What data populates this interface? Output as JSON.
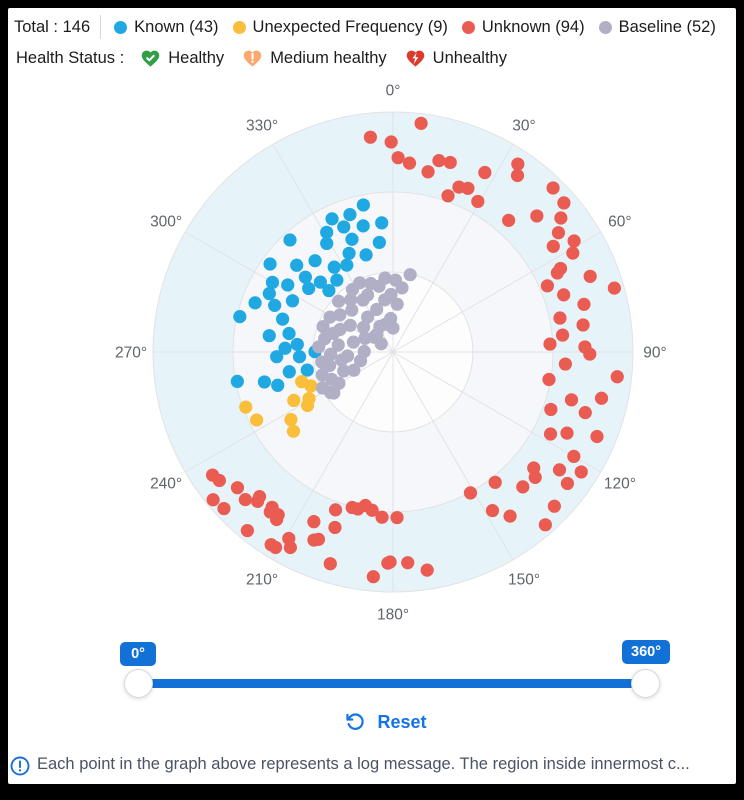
{
  "legend": {
    "total_label": "Total : 146",
    "items": [
      {
        "label": "Known (43)",
        "color": "#1FA8E1"
      },
      {
        "label": "Unexpected Frequency (9)",
        "color": "#F9BE3A"
      },
      {
        "label": "Unknown (94)",
        "color": "#EA5B52"
      },
      {
        "label": "Baseline (52)",
        "color": "#B1AFC5"
      }
    ]
  },
  "health_status": {
    "label": "Health Status :",
    "items": [
      {
        "label": "Healthy",
        "icon": "heart-check-icon",
        "color": "#2F9E44"
      },
      {
        "label": "Medium healthy",
        "icon": "heart-exclamation-icon",
        "color": "#F9A870"
      },
      {
        "label": "Unhealthy",
        "icon": "heart-bolt-icon",
        "color": "#DD3A2E"
      }
    ]
  },
  "chart_data": {
    "type": "scatter",
    "subtype": "polar-scatter",
    "angle_ticks": [
      "0°",
      "30°",
      "60°",
      "90°",
      "120°",
      "150°",
      "180°",
      "210°",
      "240°",
      "270°",
      "300°",
      "330°"
    ],
    "angle_range": [
      0,
      360
    ],
    "grid_color": "#E2E2E5",
    "tick_color": "#5F646B",
    "rings": [
      {
        "frac": 1.0,
        "fill": "#E6F4F9"
      },
      {
        "frac": 0.6667,
        "fill": "#F6F7FA"
      },
      {
        "frac": 0.3333,
        "fill": "#FDFDFE"
      }
    ],
    "series": [
      {
        "name": "Unknown",
        "color": "#EA5B52",
        "points": [
          [
            354,
            0.9
          ],
          [
            359.5,
            0.875
          ],
          [
            1.5,
            0.81
          ],
          [
            5,
            0.79
          ],
          [
            7,
            0.96
          ],
          [
            11,
            0.765
          ],
          [
            13.5,
            0.82
          ],
          [
            16.8,
            0.825
          ],
          [
            19.4,
            0.69
          ],
          [
            21.8,
            0.74
          ],
          [
            24.6,
            0.75
          ],
          [
            27.1,
            0.84
          ],
          [
            29.4,
            0.72
          ],
          [
            33.6,
            0.94
          ],
          [
            35.2,
            0.9
          ],
          [
            41.3,
            0.73
          ],
          [
            44.3,
            0.955
          ],
          [
            46.6,
            0.825
          ],
          [
            48.9,
            0.945
          ],
          [
            51.4,
            0.895
          ],
          [
            54.2,
            0.85
          ],
          [
            56.6,
            0.8
          ],
          [
            58.5,
            0.885
          ],
          [
            61.2,
            0.855
          ],
          [
            63.5,
            0.78
          ],
          [
            64.3,
            0.76
          ],
          [
            66.8,
            0.7
          ],
          [
            69,
            0.88
          ],
          [
            71.5,
            0.75
          ],
          [
            73.9,
            0.96
          ],
          [
            76,
            0.82
          ],
          [
            78.5,
            0.71
          ],
          [
            81.9,
            0.8
          ],
          [
            84.3,
            0.71
          ],
          [
            87.1,
            0.655
          ],
          [
            88.5,
            0.8
          ],
          [
            90.6,
            0.82
          ],
          [
            94,
            0.72
          ],
          [
            96.3,
            0.94
          ],
          [
            100,
            0.66
          ],
          [
            102.5,
            0.89
          ],
          [
            105,
            0.77
          ],
          [
            107.5,
            0.84
          ],
          [
            110,
            0.7
          ],
          [
            112.5,
            0.92
          ],
          [
            115,
            0.8
          ],
          [
            117.5,
            0.74
          ],
          [
            120,
            0.87
          ],
          [
            122.5,
            0.93
          ],
          [
            125.3,
            0.85
          ],
          [
            127,
            0.91
          ],
          [
            129.5,
            0.76
          ],
          [
            131.4,
            0.79
          ],
          [
            133.7,
            0.93
          ],
          [
            136.1,
            0.78
          ],
          [
            138.6,
            0.96
          ],
          [
            141.9,
            0.69
          ],
          [
            144.5,
            0.84
          ],
          [
            147.9,
            0.78
          ],
          [
            151.2,
            0.67
          ],
          [
            171.1,
            0.92
          ],
          [
            176,
            0.88
          ],
          [
            178.6,
            0.69
          ],
          [
            180.8,
            0.875
          ],
          [
            181.4,
            0.88
          ],
          [
            183.8,
            0.69
          ],
          [
            185,
            0.94
          ],
          [
            187.5,
            0.665
          ],
          [
            190.2,
            0.65
          ],
          [
            192.6,
            0.67
          ],
          [
            194.7,
            0.67
          ],
          [
            196.5,
            0.92
          ],
          [
            198.3,
            0.77
          ],
          [
            200,
            0.7
          ],
          [
            201.7,
            0.84
          ],
          [
            202.8,
            0.85
          ],
          [
            205,
            0.78
          ],
          [
            207.7,
            0.92
          ],
          [
            209.2,
            0.89
          ],
          [
            211,
            0.95
          ],
          [
            212.3,
            0.95
          ],
          [
            214.8,
            0.85
          ],
          [
            215.2,
            0.83
          ],
          [
            217.5,
            0.84
          ],
          [
            217.9,
            0.82
          ],
          [
            219.2,
            0.96
          ],
          [
            222.2,
            0.84
          ],
          [
            222.7,
            0.82
          ],
          [
            225,
            0.87
          ],
          [
            227.2,
            0.96
          ],
          [
            228.9,
            0.86
          ],
          [
            230.6,
            0.97
          ],
          [
            233.5,
            0.9
          ],
          [
            235.7,
            0.91
          ]
        ]
      },
      {
        "name": "Known",
        "color": "#1FA8E1",
        "points": [
          [
            348.6,
            0.625
          ],
          [
            346.7,
            0.54
          ],
          [
            344.5,
            0.42
          ],
          [
            342.6,
            0.6
          ],
          [
            340,
            0.5
          ],
          [
            338.5,
            0.56
          ],
          [
            336,
            0.45
          ],
          [
            335.4,
            0.61
          ],
          [
            332,
            0.41
          ],
          [
            331,
            0.57
          ],
          [
            328.6,
            0.53
          ],
          [
            325.3,
            0.43
          ],
          [
            322,
            0.38
          ],
          [
            319.5,
            0.5
          ],
          [
            317.4,
            0.634
          ],
          [
            313.9,
            0.42
          ],
          [
            313.8,
            0.37
          ],
          [
            312,
            0.54
          ],
          [
            310.5,
            0.48
          ],
          [
            307,
            0.44
          ],
          [
            305.6,
            0.63
          ],
          [
            302.5,
            0.52
          ],
          [
            300,
            0.58
          ],
          [
            297,
            0.47
          ],
          [
            295.3,
            0.57
          ],
          [
            291.5,
            0.53
          ],
          [
            289.6,
            0.61
          ],
          [
            286.6,
            0.48
          ],
          [
            283,
            0.655
          ],
          [
            280.1,
            0.44
          ],
          [
            277.5,
            0.52
          ],
          [
            274.5,
            0.4
          ],
          [
            272,
            0.45
          ],
          [
            270.2,
            0.325
          ],
          [
            267.7,
            0.485
          ],
          [
            267.1,
            0.39
          ],
          [
            355,
            0.54
          ],
          [
            259.3,
            0.66
          ],
          [
            259.2,
            0.44
          ],
          [
            258.1,
            0.365
          ],
          [
            256.9,
            0.55
          ],
          [
            253.9,
            0.5
          ],
          [
            352.9,
            0.46
          ]
        ]
      },
      {
        "name": "Unexpected Frequency",
        "color": "#F9BE3A",
        "points": [
          [
            252,
            0.4
          ],
          [
            247.5,
            0.37
          ],
          [
            241,
            0.4
          ],
          [
            249.5,
            0.655
          ],
          [
            243.5,
            0.635
          ],
          [
            236.5,
            0.51
          ],
          [
            231.5,
            0.53
          ],
          [
            244,
            0.46
          ],
          [
            238,
            0.42
          ]
        ]
      },
      {
        "name": "Baseline",
        "color": "#B1AFC5",
        "points": [
          [
            12.5,
            0.33
          ],
          [
            8,
            0.27
          ],
          [
            5,
            0.2
          ],
          [
            2,
            0.3
          ],
          [
            0,
            0.1
          ],
          [
            358,
            0.24
          ],
          [
            356,
            0.14
          ],
          [
            353.8,
            0.31
          ],
          [
            351,
            0.22
          ],
          [
            348,
            0.28
          ],
          [
            345,
            0.12
          ],
          [
            342,
            0.3
          ],
          [
            339,
            0.19
          ],
          [
            336,
            0.26
          ],
          [
            334.3,
            0.32
          ],
          [
            332.8,
            0.12
          ],
          [
            330,
            0.25
          ],
          [
            327,
            0.31
          ],
          [
            324,
            0.18
          ],
          [
            321,
            0.28
          ],
          [
            318,
            0.1
          ],
          [
            315.5,
            0.245
          ],
          [
            313,
            0.31
          ],
          [
            310,
            0.16
          ],
          [
            308,
            0.1
          ],
          [
            305,
            0.27
          ],
          [
            302,
            0.21
          ],
          [
            299,
            0.3
          ],
          [
            296,
            0.13
          ],
          [
            293,
            0.24
          ],
          [
            290,
            0.31
          ],
          [
            287.4,
            0.26
          ],
          [
            284,
            0.17
          ],
          [
            281,
            0.29
          ],
          [
            277.3,
            0.23
          ],
          [
            274,
            0.31
          ],
          [
            271,
            0.12
          ],
          [
            268,
            0.26
          ],
          [
            265,
            0.19
          ],
          [
            262,
            0.3
          ],
          [
            261.1,
            0.217
          ],
          [
            258,
            0.27
          ],
          [
            255,
            0.14
          ],
          [
            252,
            0.31
          ],
          [
            249,
            0.22
          ],
          [
            246,
            0.28
          ],
          [
            243,
            0.33
          ],
          [
            240,
            0.26
          ],
          [
            237,
            0.31
          ],
          [
            235.3,
            0.3
          ],
          [
            245,
            0.18
          ],
          [
            305,
            0.06
          ]
        ]
      }
    ]
  },
  "slider": {
    "min_label": "0°",
    "max_label": "360°",
    "reset_label": "Reset"
  },
  "footer": {
    "note": "Each point in the graph above represents a log message. The region inside innermost c..."
  },
  "colors": {
    "accent": "#1271D6",
    "reset_blue": "#1473E6",
    "info_blue": "#1B6FD8"
  }
}
